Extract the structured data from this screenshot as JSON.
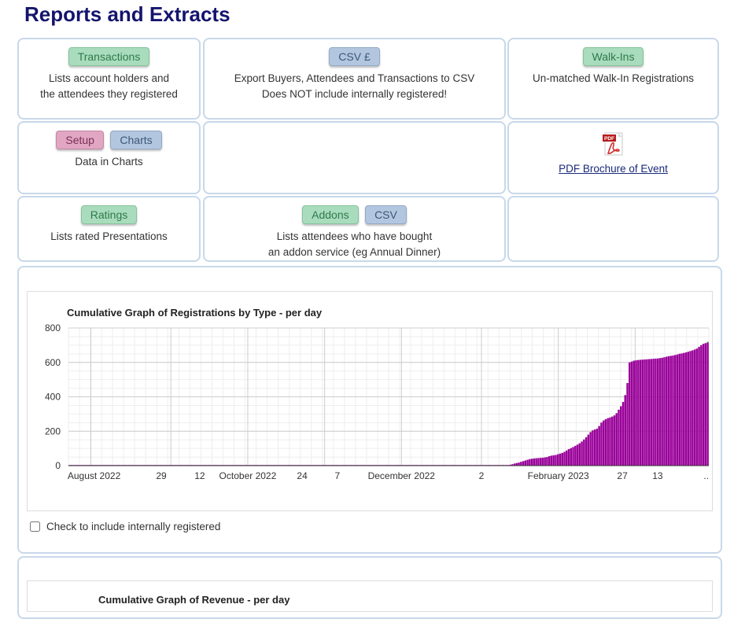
{
  "page": {
    "title": "Reports and Extracts"
  },
  "cards": {
    "transactions": {
      "button": "Transactions",
      "desc1": "Lists account holders and",
      "desc2": "the attendees they registered"
    },
    "csv": {
      "button": "CSV £",
      "desc1": "Export Buyers, Attendees and Transactions to CSV",
      "desc2": "Does NOT include internally registered!"
    },
    "walkins": {
      "button": "Walk-Ins",
      "desc1": "Un-matched Walk-In Registrations"
    },
    "charts": {
      "setup": "Setup",
      "charts": "Charts",
      "desc1": "Data in Charts"
    },
    "pdf": {
      "icon_label": "PDF",
      "link": "PDF Brochure of Event"
    },
    "ratings": {
      "button": "Ratings",
      "desc1": "Lists rated Presentations"
    },
    "addons": {
      "button": "Addons",
      "csv": "CSV",
      "desc1": "Lists attendees who have bought",
      "desc2": "an addon service (eg Annual Dinner)"
    }
  },
  "chart_data": {
    "type": "bar",
    "title": "Cumulative Graph of Registrations by Type - per day",
    "ylim": [
      0,
      800
    ],
    "yticks": [
      0,
      200,
      400,
      600,
      800
    ],
    "xticks": [
      "August 2022",
      "29",
      "12",
      "October 2022",
      "24",
      "7",
      "December 2022",
      "2",
      "February 2023",
      "27",
      "13",
      ".."
    ],
    "grid": true,
    "series": [
      {
        "color": "#990099",
        "values": [
          0,
          1,
          1,
          1,
          1,
          1,
          1,
          1,
          1,
          1,
          1,
          1,
          1,
          1,
          1,
          1,
          1,
          1,
          1,
          1,
          1,
          1,
          1,
          1,
          1,
          1,
          1,
          1,
          1,
          1,
          1,
          1,
          1,
          1,
          1,
          1,
          1,
          1,
          1,
          1,
          1,
          1,
          1,
          1,
          1,
          1,
          1,
          1,
          1,
          1,
          1,
          1,
          1,
          1,
          1,
          1,
          1,
          1,
          1,
          1,
          1,
          1,
          1,
          1,
          1,
          1,
          1,
          1,
          1,
          1,
          1,
          1,
          1,
          1,
          1,
          1,
          1,
          1,
          1,
          1,
          1,
          1,
          1,
          1,
          1,
          1,
          1,
          1,
          2,
          2,
          2,
          2,
          2,
          2,
          2,
          2,
          2,
          2,
          2,
          2,
          2,
          2,
          2,
          2,
          2,
          2,
          2,
          2,
          2,
          2,
          2,
          2,
          2,
          2,
          2,
          2,
          2,
          2,
          2,
          2,
          2,
          2,
          2,
          2,
          2,
          2,
          2,
          2,
          2,
          2,
          2,
          2,
          2,
          2,
          2,
          2,
          2,
          2,
          2,
          2,
          2,
          2,
          2,
          2,
          2,
          2,
          2,
          2,
          2,
          2,
          2,
          2,
          2,
          2,
          2,
          2,
          2,
          2,
          2,
          2,
          2,
          2,
          2,
          2,
          2,
          2,
          2,
          2,
          2,
          2,
          2,
          2,
          2,
          2,
          2,
          2,
          2,
          2,
          2,
          2,
          2,
          2,
          2,
          2,
          2,
          2,
          2,
          2,
          2,
          2,
          2,
          2,
          2,
          2,
          2,
          2,
          2,
          2,
          2,
          2,
          2,
          2,
          2,
          5,
          8,
          12,
          15,
          18,
          22,
          26,
          30,
          34,
          38,
          40,
          42,
          43,
          44,
          45,
          46,
          48,
          50,
          55,
          58,
          60,
          62,
          66,
          70,
          74,
          80,
          88,
          96,
          102,
          108,
          115,
          122,
          130,
          140,
          152,
          165,
          180,
          195,
          205,
          210,
          215,
          230,
          250,
          262,
          270,
          276,
          280,
          285,
          292,
          305,
          325,
          345,
          370,
          410,
          480,
          600,
          605,
          610,
          612,
          614,
          615,
          616,
          617,
          618,
          619,
          620,
          621,
          622,
          623,
          625,
          627,
          630,
          633,
          636,
          638,
          640,
          643,
          646,
          650,
          652,
          655,
          658,
          662,
          666,
          670,
          675,
          680,
          690,
          700,
          708,
          712,
          715
        ]
      },
      {
        "color": "#4caf50",
        "values": [
          0,
          0,
          0,
          0,
          0,
          0,
          0,
          0,
          0,
          0,
          0,
          0,
          0,
          0,
          0,
          0,
          0,
          0,
          0,
          0,
          0,
          0,
          0,
          0,
          0,
          0,
          0,
          0,
          0,
          0,
          0,
          0,
          0,
          0,
          0,
          0,
          0,
          0,
          0,
          0,
          0,
          0,
          0,
          0,
          0,
          0,
          0,
          0,
          0,
          0,
          0,
          0,
          0,
          0,
          0,
          0,
          0,
          0,
          0,
          0,
          0,
          0,
          0,
          0,
          0,
          0,
          0,
          0,
          0,
          0,
          0,
          0,
          0,
          0,
          0,
          0,
          0,
          0,
          0,
          0,
          0,
          0,
          0,
          0,
          0,
          0,
          0,
          0,
          0,
          0,
          0,
          0,
          0,
          0,
          0,
          0,
          0,
          0,
          0,
          0,
          0,
          0,
          0,
          0,
          0,
          0,
          0,
          0,
          0,
          0,
          0,
          0,
          0,
          0,
          0,
          0,
          0,
          0,
          0,
          0,
          0,
          0,
          0,
          0,
          0,
          0,
          0,
          0,
          0,
          0,
          0,
          0,
          0,
          0,
          0,
          0,
          0,
          0,
          0,
          0,
          0,
          0,
          0,
          0,
          0,
          0,
          0,
          0,
          0,
          0,
          0,
          0,
          0,
          0,
          0,
          0,
          0,
          0,
          0,
          0,
          0,
          0,
          0,
          0,
          0,
          0,
          0,
          0,
          0,
          0,
          0,
          0,
          0,
          0,
          0,
          0,
          0,
          0,
          0,
          0,
          0,
          0,
          0,
          0,
          0,
          0,
          0,
          0,
          0,
          0,
          0,
          0,
          0,
          0,
          0,
          0,
          0,
          0,
          0,
          0,
          0,
          0,
          0,
          0,
          0,
          0,
          0,
          0,
          0,
          0,
          0,
          0,
          0,
          0,
          0,
          0,
          0,
          0,
          0,
          0,
          0,
          0,
          0,
          0,
          0,
          0,
          0,
          0,
          0,
          0,
          0,
          0,
          0,
          0,
          0,
          0,
          0,
          0,
          0,
          0,
          0,
          0,
          0,
          0,
          0,
          0,
          0,
          0,
          0,
          0,
          0,
          0,
          0,
          0,
          0,
          0,
          0,
          0,
          0,
          0,
          0,
          0,
          0,
          0,
          0,
          0,
          0,
          0,
          0,
          0,
          0,
          0,
          0,
          0,
          0,
          0,
          0,
          0,
          0,
          0,
          0,
          0,
          0,
          0,
          0,
          0,
          0,
          0,
          0,
          0,
          0,
          0,
          0,
          0,
          5,
          5,
          5,
          5,
          5,
          5,
          5,
          5,
          5,
          5,
          5,
          5,
          5,
          5,
          5,
          5,
          5,
          5,
          5,
          5,
          5,
          5,
          5,
          5,
          5,
          5,
          5,
          5,
          5,
          5,
          5,
          5,
          5,
          5,
          5,
          5,
          5,
          5,
          5,
          5,
          5
        ]
      }
    ]
  },
  "checkbox": {
    "label": "Check to include internally registered",
    "checked": false
  },
  "chart2": {
    "title": "Cumulative Graph of Revenue - per day"
  }
}
